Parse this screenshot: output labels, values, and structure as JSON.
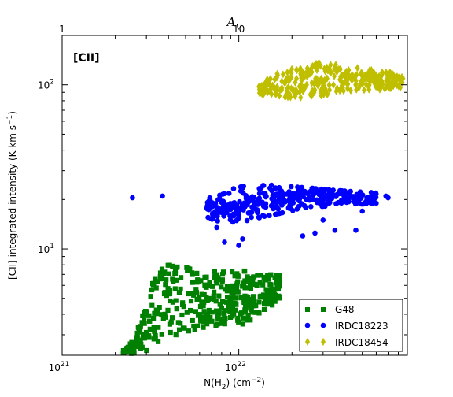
{
  "chart_data": {
    "type": "scatter",
    "title": "",
    "panel_label": "[CII]",
    "xlabel": "N(H2) (cm^-2)",
    "xlabel_parts": {
      "base": "N(H",
      "sub": "2",
      "mid": ") (cm",
      "sup": "−2",
      "end": ")"
    },
    "ylabel": "[CII] integrated intensity (K km s^-1)",
    "ylabel_parts": {
      "base": "[CII] integrated intensity (K km s",
      "sup": "−1",
      "end": ")"
    },
    "x_scale": "log",
    "y_scale": "log",
    "xlim": [
      1e+21,
      9e+22
    ],
    "ylim": [
      2.25,
      200
    ],
    "x_ticks": [
      {
        "value": 1e+21,
        "base": "10",
        "exp": "21"
      },
      {
        "value": 1e+22,
        "base": "10",
        "exp": "22"
      }
    ],
    "y_ticks": [
      {
        "value": 10,
        "base": "10",
        "exp": "1"
      },
      {
        "value": 100,
        "base": "10",
        "exp": "2"
      }
    ],
    "top_axis": {
      "label": "A_V",
      "label_parts": {
        "base": "A",
        "sub": "V"
      },
      "ticks": [
        {
          "value": 1e+21,
          "label": "1"
        },
        {
          "value": 1e+22,
          "label": "10"
        }
      ]
    },
    "grid": false,
    "legend_position": "lower-right",
    "series": [
      {
        "name": "G48",
        "marker": "square",
        "color": "#008000",
        "region": {
          "x_range": [
            2.2e+21,
            1.7e+22
          ],
          "y_range": [
            2.25,
            8.1
          ],
          "y_max_at_x": [
            [
              2.2e+21,
              2.4
            ],
            [
              2.6e+21,
              3.0
            ],
            [
              3e+21,
              4.6
            ],
            [
              3.4e+21,
              7.3
            ],
            [
              4e+21,
              8.1
            ],
            [
              6e+21,
              7.5
            ],
            [
              1e+22,
              7.4
            ],
            [
              1.3e+22,
              7.2
            ],
            [
              1.7e+22,
              6.9
            ]
          ],
          "y_min_at_x": [
            [
              2.2e+21,
              2.25
            ],
            [
              3e+21,
              2.4
            ],
            [
              4e+21,
              2.9
            ],
            [
              6e+21,
              3.3
            ],
            [
              1e+22,
              3.4
            ],
            [
              1.3e+22,
              3.8
            ],
            [
              1.7e+22,
              5.0
            ]
          ],
          "count": 430
        }
      },
      {
        "name": "IRDC18223",
        "marker": "circle",
        "color": "#0000ff",
        "region": {
          "x_range": [
            6.5e+21,
            6e+22
          ],
          "y_range": [
            14.5,
            24.5
          ],
          "y_max_at_x": [
            [
              6.5e+21,
              20
            ],
            [
              1e+22,
              24
            ],
            [
              1.5e+22,
              24.5
            ],
            [
              2.5e+22,
              23.5
            ],
            [
              4e+22,
              22.5
            ],
            [
              6e+22,
              22
            ]
          ],
          "y_min_at_x": [
            [
              6.5e+21,
              15
            ],
            [
              1e+22,
              14.5
            ],
            [
              1.5e+22,
              16
            ],
            [
              2.5e+22,
              18
            ],
            [
              4e+22,
              18.5
            ],
            [
              6e+22,
              19
            ]
          ],
          "count": 380
        },
        "points": [
          [
            2.5e+21,
            20.5
          ],
          [
            3.7e+21,
            21
          ],
          [
            1e+22,
            10.5
          ],
          [
            1.05e+22,
            11.5
          ],
          [
            8.3e+21,
            11
          ],
          [
            7e+22,
            20.5
          ],
          [
            6.8e+22,
            21
          ],
          [
            2.3e+22,
            12
          ],
          [
            2.7e+22,
            12.5
          ],
          [
            3.5e+22,
            13
          ],
          [
            4.6e+22,
            13
          ],
          [
            5e+22,
            17
          ],
          [
            3e+22,
            15
          ],
          [
            7.5e+21,
            13.5
          ]
        ]
      },
      {
        "name": "IRDC18454",
        "marker": "diamond",
        "color": "#bfbf00",
        "region": {
          "x_range": [
            1.3e+22,
            8.5e+22
          ],
          "y_range": [
            82,
            140
          ],
          "y_max_at_x": [
            [
              1.3e+22,
              98
            ],
            [
              1.6e+22,
              118
            ],
            [
              2.2e+22,
              130
            ],
            [
              3e+22,
              138
            ],
            [
              4e+22,
              130
            ],
            [
              6e+22,
              122
            ],
            [
              8.5e+22,
              116
            ]
          ],
          "y_min_at_x": [
            [
              1.3e+22,
              88
            ],
            [
              1.6e+22,
              84
            ],
            [
              2.2e+22,
              83
            ],
            [
              3e+22,
              86
            ],
            [
              4e+22,
              92
            ],
            [
              6e+22,
              93
            ],
            [
              8.5e+22,
              95
            ]
          ],
          "count": 340
        }
      }
    ]
  }
}
